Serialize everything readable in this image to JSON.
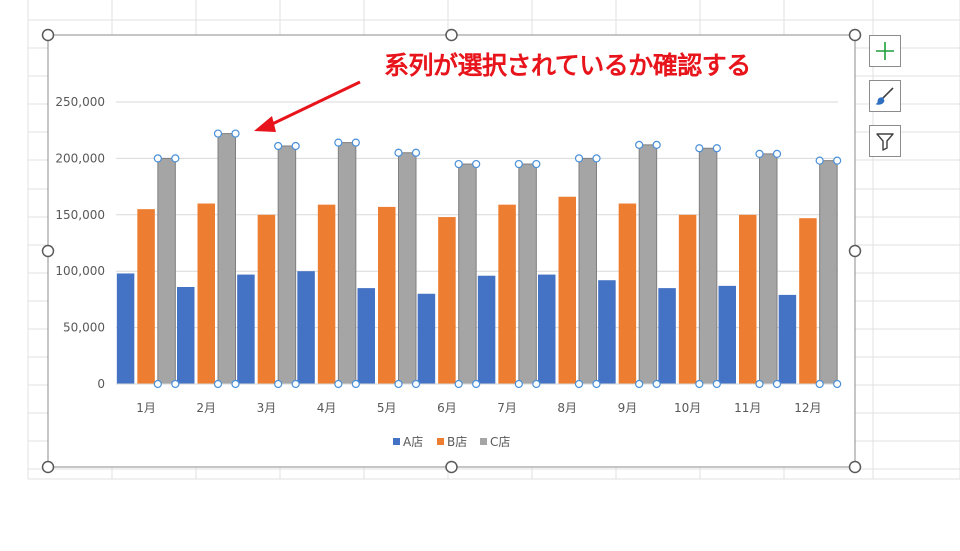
{
  "annotation": {
    "text": "系列が選択されているか確認する",
    "color": "#e8141c"
  },
  "chart_tools": {
    "add_element_icon": "plus-icon",
    "style_icon": "brush-icon",
    "filter_icon": "funnel-icon",
    "add_color": "#1e9e3a",
    "style_color": "#2e6fbf",
    "filter_color": "#404040"
  },
  "chart_data": {
    "type": "bar",
    "title": "",
    "xlabel": "",
    "ylabel": "",
    "categories": [
      "1月",
      "2月",
      "3月",
      "4月",
      "5月",
      "6月",
      "7月",
      "8月",
      "9月",
      "10月",
      "11月",
      "12月"
    ],
    "ylim": [
      0,
      250000
    ],
    "yticks": [
      0,
      50000,
      100000,
      150000,
      200000,
      250000
    ],
    "ytick_labels": [
      "0",
      "50,000",
      "100,000",
      "150,000",
      "200,000",
      "250,000"
    ],
    "grid": true,
    "legend_position": "bottom",
    "selected_series": 2,
    "series": [
      {
        "name": "A店",
        "color": "#4472c4",
        "values": [
          98000,
          86000,
          97000,
          100000,
          85000,
          80000,
          96000,
          97000,
          92000,
          85000,
          87000,
          79000
        ]
      },
      {
        "name": "B店",
        "color": "#ed7d31",
        "values": [
          155000,
          160000,
          150000,
          159000,
          157000,
          148000,
          159000,
          166000,
          160000,
          150000,
          150000,
          147000
        ]
      },
      {
        "name": "C店",
        "color": "#a5a5a5",
        "values": [
          200000,
          222000,
          211000,
          214000,
          205000,
          195000,
          195000,
          200000,
          212000,
          209000,
          204000,
          198000
        ]
      }
    ]
  }
}
